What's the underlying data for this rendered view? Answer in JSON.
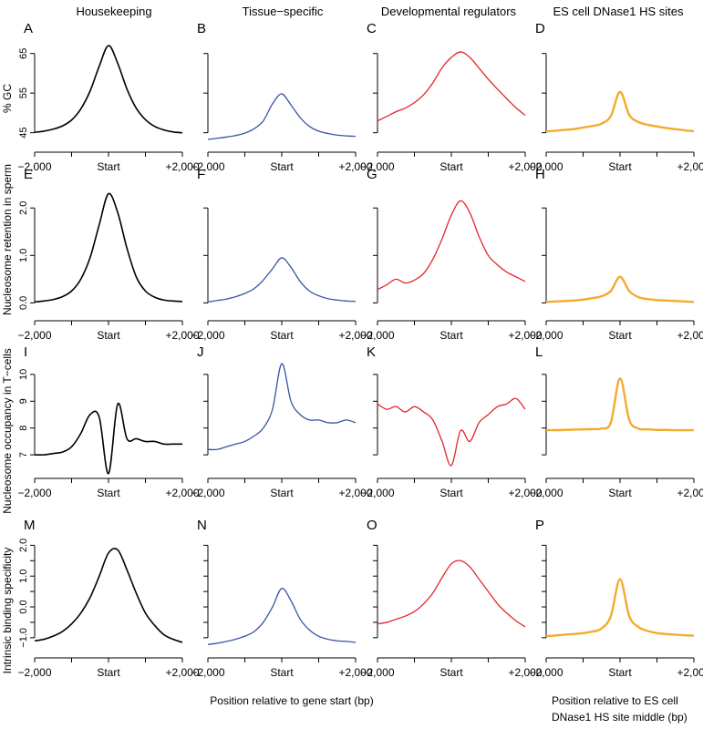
{
  "columns": [
    "Housekeeping",
    "Tissue−specific",
    "Developmental regulators",
    "ES cell DNase1 HS sites"
  ],
  "row_ylabels": [
    "% GC",
    "Nucleosome retention in sperm",
    "Nucleosome occupancy in T−cells",
    "Intrinsic binding specificity"
  ],
  "xlabels": {
    "gene": "Position relative to gene start (bp)",
    "dnase_line1": "Position relative to ES cell",
    "dnase_line2": "DNase1 HS site middle (bp)"
  },
  "colors": {
    "Housekeeping": "#000000",
    "Tissue−specific": "#3a54a3",
    "Developmental regulators": "#e2262b",
    "ES cell DNase1 HS sites": "#f3aa2d"
  },
  "chart_data": {
    "type": "line",
    "panels_letters": [
      "A",
      "B",
      "C",
      "D",
      "E",
      "F",
      "G",
      "H",
      "I",
      "J",
      "K",
      "L",
      "M",
      "N",
      "O",
      "P"
    ],
    "xticks": [
      "−2,000",
      "Start",
      "+2,000"
    ],
    "x": [
      -2000,
      -1750,
      -1500,
      -1250,
      -1000,
      -750,
      -500,
      -250,
      0,
      250,
      500,
      750,
      1000,
      1250,
      1500,
      1750,
      2000
    ],
    "rows": [
      {
        "ylabel": "% GC",
        "ylim": [
          44,
          67
        ],
        "yticks": [
          45,
          55,
          65
        ],
        "series": [
          {
            "name": "Housekeeping",
            "values": [
              45.1,
              45.4,
              45.9,
              46.7,
              48.2,
              51.0,
              55.5,
              61.8,
              67.0,
              62.5,
              56.0,
              51.2,
              48.3,
              46.6,
              45.7,
              45.2,
              45.0
            ]
          },
          {
            "name": "Tissue−specific",
            "values": [
              43.3,
              43.6,
              43.9,
              44.3,
              44.9,
              46.0,
              48.0,
              52.3,
              54.8,
              52.0,
              48.8,
              46.6,
              45.4,
              44.8,
              44.4,
              44.2,
              44.1
            ]
          },
          {
            "name": "Developmental regulators",
            "values": [
              48.0,
              49.1,
              50.3,
              51.2,
              52.6,
              54.6,
              57.6,
              61.4,
              64.0,
              65.4,
              64.0,
              61.3,
              58.5,
              56.0,
              53.6,
              51.3,
              49.4
            ]
          },
          {
            "name": "ES cell DNase1 HS sites",
            "values": [
              45.3,
              45.5,
              45.7,
              45.9,
              46.3,
              46.7,
              47.3,
              49.2,
              55.3,
              49.5,
              47.7,
              47.0,
              46.6,
              46.2,
              45.9,
              45.6,
              45.4
            ]
          }
        ]
      },
      {
        "ylabel": "Nucleosome retention in sperm",
        "ylim": [
          -0.05,
          2.35
        ],
        "yticks": [
          0.0,
          1.0,
          2.0
        ],
        "ytick_labels": [
          "0.0",
          "1.0",
          "2.0"
        ],
        "series": [
          {
            "name": "Housekeeping",
            "values": [
              0.02,
              0.04,
              0.07,
              0.13,
              0.25,
              0.5,
              0.95,
              1.65,
              2.3,
              1.9,
              1.15,
              0.55,
              0.25,
              0.12,
              0.06,
              0.04,
              0.03
            ]
          },
          {
            "name": "Tissue−specific",
            "values": [
              0.02,
              0.05,
              0.08,
              0.13,
              0.2,
              0.3,
              0.48,
              0.72,
              0.95,
              0.75,
              0.45,
              0.25,
              0.15,
              0.09,
              0.06,
              0.04,
              0.03
            ]
          },
          {
            "name": "Developmental regulators",
            "values": [
              0.28,
              0.38,
              0.5,
              0.42,
              0.48,
              0.62,
              0.92,
              1.35,
              1.85,
              2.15,
              1.9,
              1.4,
              1.0,
              0.8,
              0.65,
              0.55,
              0.45
            ]
          },
          {
            "name": "ES cell DNase1 HS sites",
            "values": [
              0.02,
              0.03,
              0.04,
              0.05,
              0.07,
              0.1,
              0.14,
              0.25,
              0.55,
              0.25,
              0.12,
              0.08,
              0.06,
              0.05,
              0.04,
              0.03,
              0.02
            ]
          }
        ]
      },
      {
        "ylabel": "Nucleosome occupancy in T−cells",
        "ylim": [
          6.8,
          10.2
        ],
        "yticks": [
          7,
          8,
          9,
          10
        ],
        "series": [
          {
            "name": "Housekeeping",
            "values": [
              7.0,
              7.0,
              7.05,
              7.1,
              7.3,
              7.8,
              8.5,
              8.4,
              6.3,
              8.9,
              7.6,
              7.6,
              7.5,
              7.5,
              7.4,
              7.4,
              7.4
            ]
          },
          {
            "name": "Tissue−specific",
            "values": [
              7.2,
              7.2,
              7.3,
              7.4,
              7.5,
              7.7,
              8.0,
              8.7,
              10.4,
              9.0,
              8.5,
              8.3,
              8.3,
              8.2,
              8.2,
              8.3,
              8.2
            ]
          },
          {
            "name": "Developmental regulators",
            "values": [
              8.9,
              8.7,
              8.8,
              8.6,
              8.8,
              8.6,
              8.3,
              7.5,
              6.6,
              7.9,
              7.5,
              8.2,
              8.5,
              8.8,
              8.9,
              9.1,
              8.7
            ]
          },
          {
            "name": "ES cell DNase1 HS sites",
            "values": [
              7.92,
              7.92,
              7.93,
              7.94,
              7.95,
              7.96,
              7.98,
              8.2,
              9.85,
              8.3,
              7.98,
              7.95,
              7.93,
              7.93,
              7.92,
              7.92,
              7.92
            ]
          }
        ]
      },
      {
        "ylabel": "Intrinsic binding specificity",
        "ylim": [
          -1.3,
          2.1
        ],
        "yticks": [
          -1.0,
          -0.5,
          0.0,
          0.5,
          1.0,
          1.5,
          2.0
        ],
        "ytick_labels": [
          "−1.0",
          "",
          "0.0",
          "",
          "1.0",
          "",
          "2.0"
        ],
        "series": [
          {
            "name": "Housekeeping",
            "values": [
              -1.1,
              -1.05,
              -0.95,
              -0.8,
              -0.55,
              -0.2,
              0.3,
              1.0,
              1.75,
              1.85,
              1.2,
              0.45,
              -0.2,
              -0.6,
              -0.9,
              -1.05,
              -1.15
            ]
          },
          {
            "name": "Tissue−specific",
            "values": [
              -1.22,
              -1.18,
              -1.12,
              -1.05,
              -0.95,
              -0.8,
              -0.5,
              0.0,
              0.6,
              0.2,
              -0.4,
              -0.75,
              -0.95,
              -1.05,
              -1.1,
              -1.12,
              -1.15
            ]
          },
          {
            "name": "Developmental regulators",
            "values": [
              -0.55,
              -0.5,
              -0.4,
              -0.3,
              -0.15,
              0.1,
              0.45,
              0.95,
              1.4,
              1.5,
              1.3,
              0.9,
              0.5,
              0.1,
              -0.2,
              -0.45,
              -0.65
            ]
          },
          {
            "name": "ES cell DNase1 HS sites",
            "values": [
              -0.95,
              -0.93,
              -0.9,
              -0.88,
              -0.85,
              -0.8,
              -0.7,
              -0.3,
              0.9,
              -0.3,
              -0.65,
              -0.78,
              -0.85,
              -0.88,
              -0.9,
              -0.92,
              -0.93
            ]
          }
        ]
      }
    ]
  }
}
